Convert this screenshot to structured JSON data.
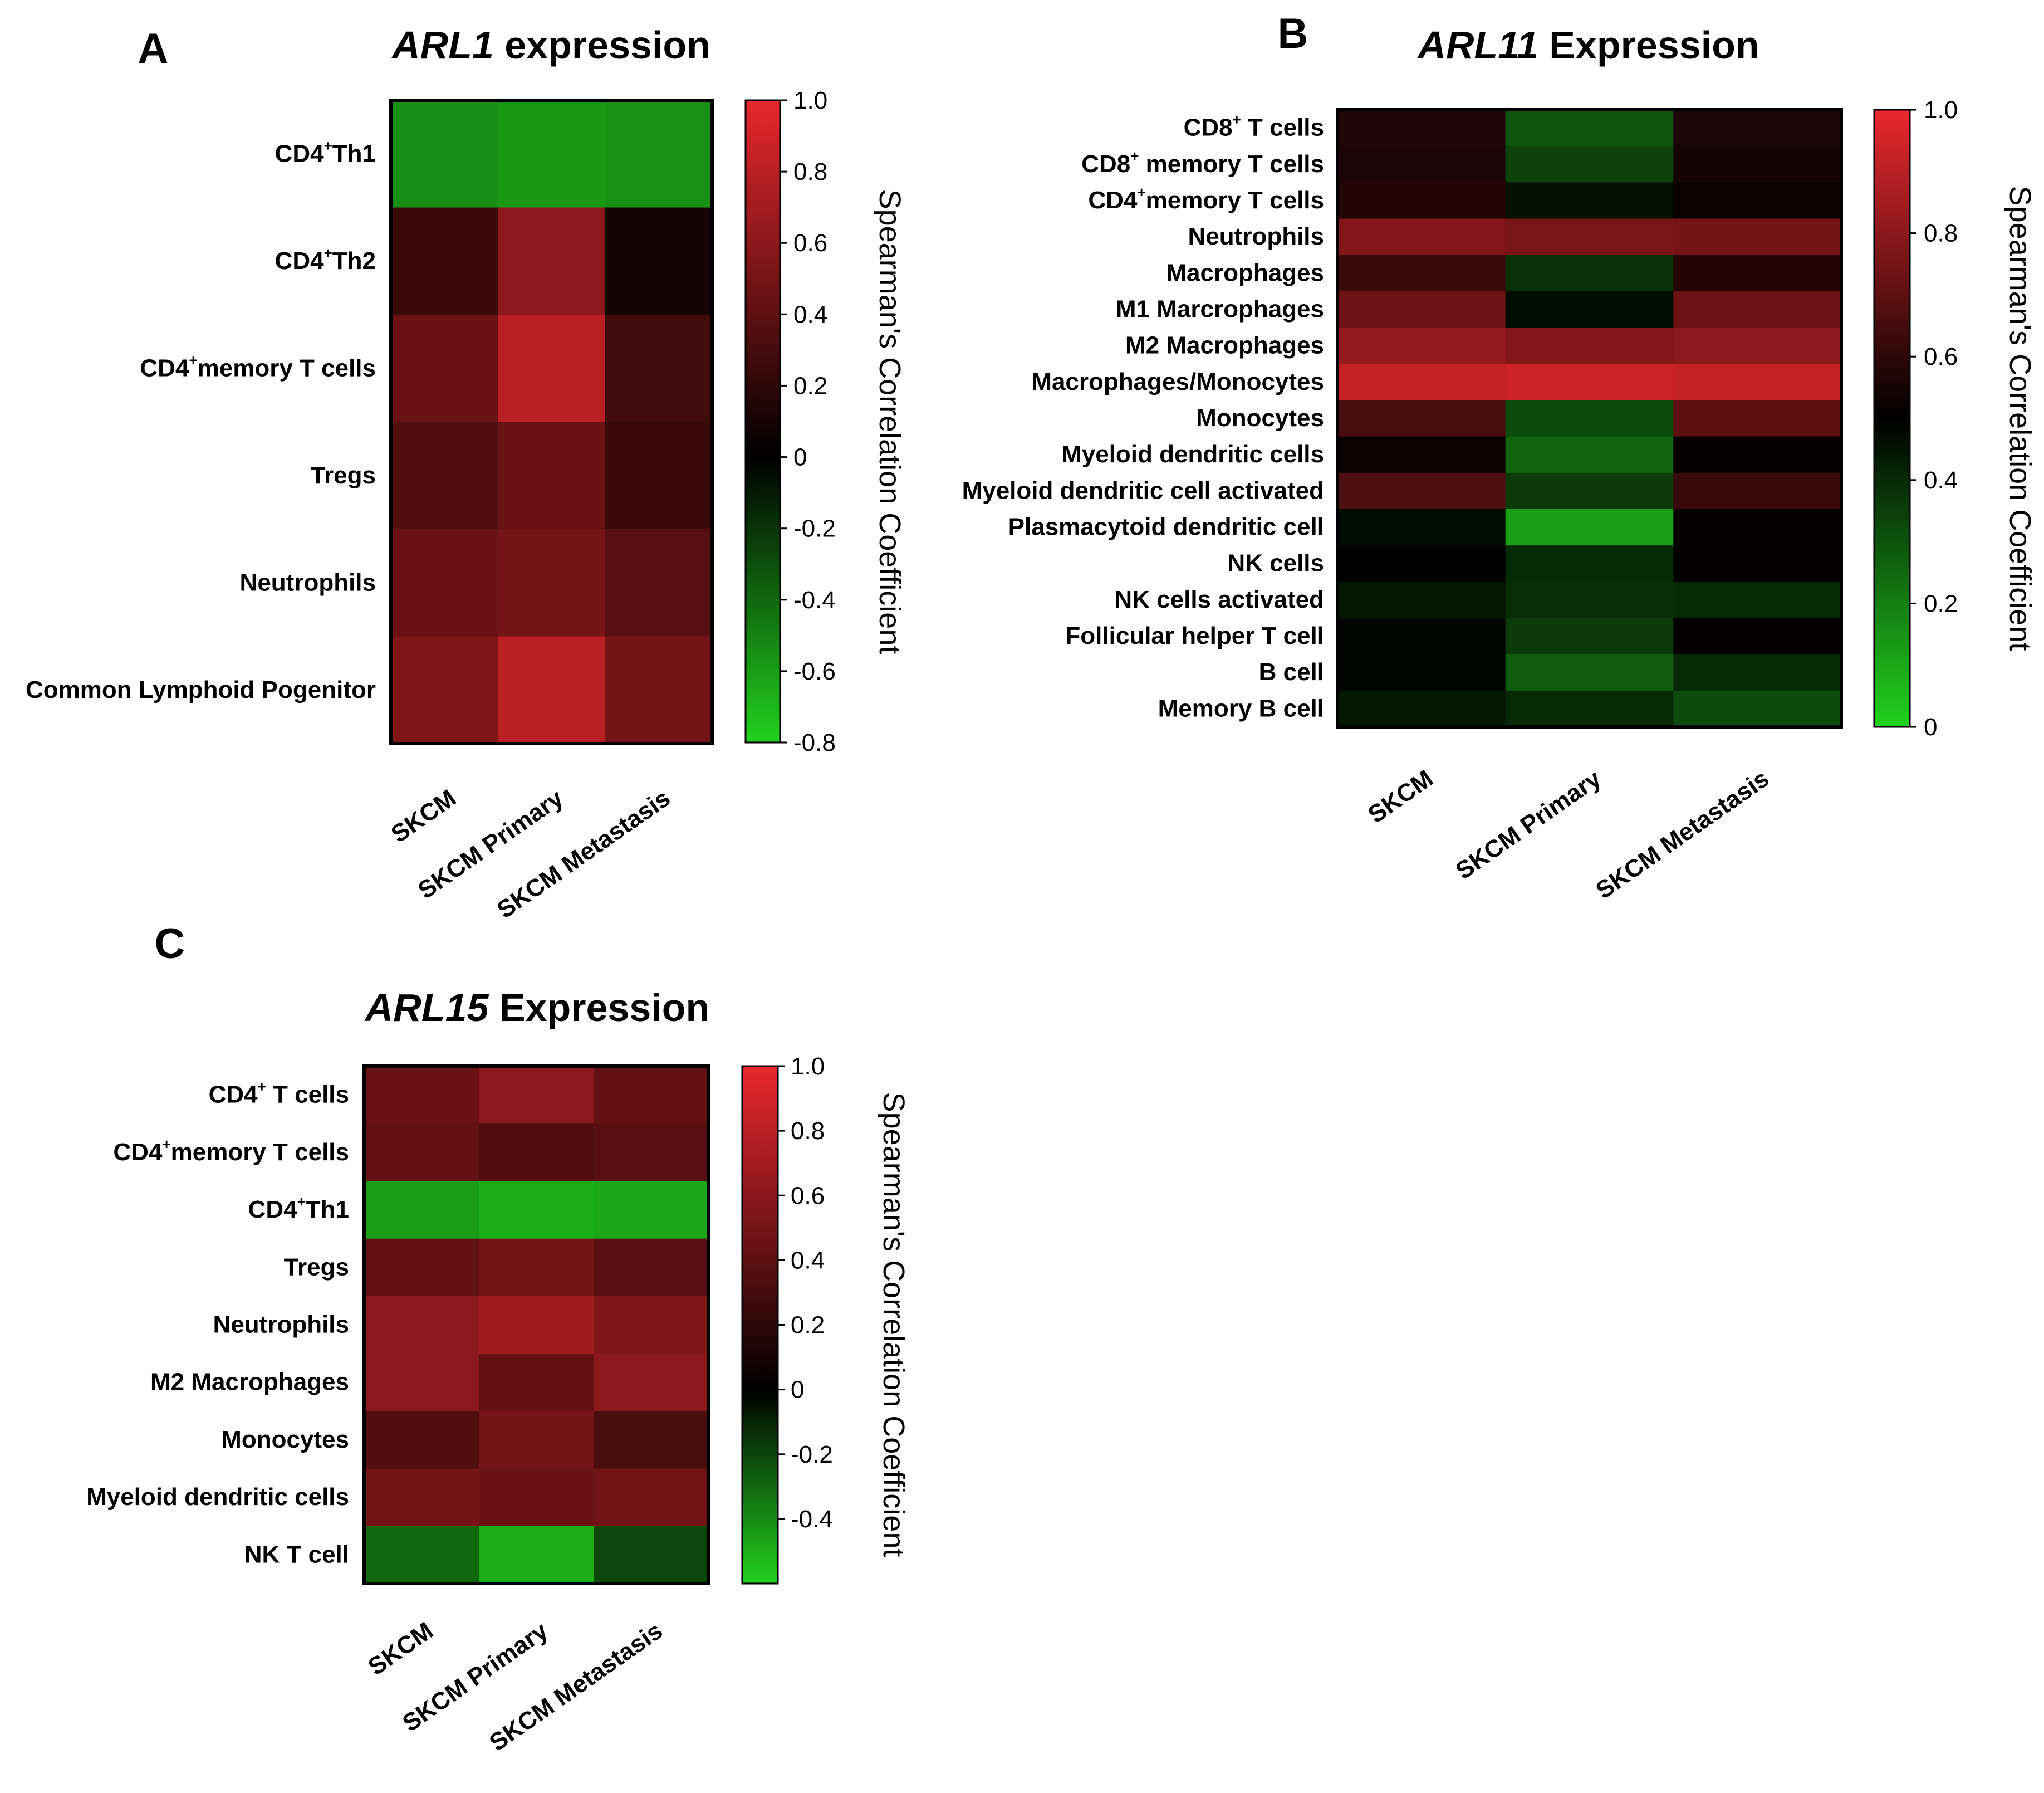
{
  "chart_data": [
    {
      "type": "heatmap",
      "panel": "A",
      "title_italic": "ARL1",
      "title_rest": " expression",
      "columns": [
        "SKCM",
        "SKCM Primary",
        "SKCM Metastasis"
      ],
      "rows": [
        {
          "pre": "CD4",
          "sup": "+",
          "post": "Th1",
          "values": [
            -0.55,
            -0.58,
            -0.56
          ]
        },
        {
          "pre": "CD4",
          "sup": "+",
          "post": "Th2",
          "values": [
            0.25,
            0.6,
            0.1
          ]
        },
        {
          "pre": "CD4",
          "sup": "+",
          "post": "memory T cells",
          "values": [
            0.45,
            0.8,
            0.28
          ]
        },
        {
          "pre": "Tregs",
          "sup": "",
          "post": "",
          "values": [
            0.35,
            0.45,
            0.25
          ]
        },
        {
          "pre": "Neutrophils",
          "sup": "",
          "post": "",
          "values": [
            0.45,
            0.5,
            0.38
          ]
        },
        {
          "pre": "Common Lymphoid Pogenitor",
          "sup": "",
          "post": "",
          "values": [
            0.55,
            0.8,
            0.5
          ]
        }
      ],
      "colorbar": {
        "min": -0.8,
        "max": 1.0,
        "mid": 0,
        "ticks": [
          "1.0",
          "0.8",
          "0.6",
          "0.4",
          "0.2",
          "0",
          "-0.2",
          "-0.4",
          "-0.6",
          "-0.8"
        ],
        "tick_values": [
          1.0,
          0.8,
          0.6,
          0.4,
          0.2,
          0,
          -0.2,
          -0.4,
          -0.6,
          -0.8
        ],
        "label": "Spearman's Correlation Coefficient"
      }
    },
    {
      "type": "heatmap",
      "panel": "B",
      "title_italic": "ARL11",
      "title_rest": " Expression",
      "columns": [
        "SKCM",
        "SKCM Primary",
        "SKCM Metastasis"
      ],
      "rows": [
        {
          "pre": "CD8",
          "sup": "+",
          "post": " T cells",
          "values": [
            0.57,
            0.3,
            0.56
          ]
        },
        {
          "pre": "CD8",
          "sup": "+",
          "post": " memory T cells",
          "values": [
            0.56,
            0.34,
            0.55
          ]
        },
        {
          "pre": "CD4",
          "sup": "+",
          "post": "memory T cells",
          "values": [
            0.58,
            0.46,
            0.52
          ]
        },
        {
          "pre": "Neutrophils",
          "sup": "",
          "post": "",
          "values": [
            0.78,
            0.76,
            0.75
          ]
        },
        {
          "pre": "Macrophages",
          "sup": "",
          "post": "",
          "values": [
            0.62,
            0.38,
            0.58
          ]
        },
        {
          "pre": "M1 Marcrophages",
          "sup": "",
          "post": "",
          "values": [
            0.73,
            0.47,
            0.73
          ]
        },
        {
          "pre": "M2 Macrophages",
          "sup": "",
          "post": "",
          "values": [
            0.82,
            0.78,
            0.8
          ]
        },
        {
          "pre": "Macrophages/Monocytes",
          "sup": "",
          "post": "",
          "values": [
            0.92,
            0.94,
            0.92
          ]
        },
        {
          "pre": "Monocytes",
          "sup": "",
          "post": "",
          "values": [
            0.66,
            0.32,
            0.7
          ]
        },
        {
          "pre": "Myeloid dendritic cells",
          "sup": "",
          "post": "",
          "values": [
            0.52,
            0.26,
            0.51
          ]
        },
        {
          "pre": "Myeloid dendritic cell activated",
          "sup": "",
          "post": "",
          "values": [
            0.67,
            0.36,
            0.62
          ]
        },
        {
          "pre": "Plasmacytoid dendritic cell",
          "sup": "",
          "post": "",
          "values": [
            0.47,
            0.12,
            0.51
          ]
        },
        {
          "pre": "NK cells",
          "sup": "",
          "post": "",
          "values": [
            0.5,
            0.4,
            0.51
          ]
        },
        {
          "pre": "NK cells activated",
          "sup": "",
          "post": "",
          "values": [
            0.44,
            0.39,
            0.4
          ]
        },
        {
          "pre": "Follicular helper T cell",
          "sup": "",
          "post": "",
          "values": [
            0.49,
            0.36,
            0.51
          ]
        },
        {
          "pre": "B cell",
          "sup": "",
          "post": "",
          "values": [
            0.49,
            0.28,
            0.4
          ]
        },
        {
          "pre": "Memory B cell ",
          "sup": "",
          "post": "",
          "values": [
            0.44,
            0.4,
            0.32
          ]
        }
      ],
      "colorbar": {
        "min": 0,
        "max": 1.0,
        "mid": 0.5,
        "ticks": [
          "1.0",
          "0.8",
          "0.6",
          "0.4",
          "0.2",
          "0"
        ],
        "tick_values": [
          1.0,
          0.8,
          0.6,
          0.4,
          0.2,
          0
        ],
        "label": "Spearman's Correlation Coefficient"
      }
    },
    {
      "type": "heatmap",
      "panel": "C",
      "title_italic": "ARL15",
      "title_rest": " Expression",
      "columns": [
        "SKCM",
        "SKCM Primary",
        "SKCM Metastasis"
      ],
      "rows": [
        {
          "pre": "CD4",
          "sup": "+",
          "post": " T cells",
          "values": [
            0.45,
            0.6,
            0.42
          ]
        },
        {
          "pre": "CD4",
          "sup": "+",
          "post": "memory T cells",
          "values": [
            0.42,
            0.35,
            0.38
          ]
        },
        {
          "pre": "CD4",
          "sup": "+",
          "post": "Th1",
          "values": [
            -0.45,
            -0.5,
            -0.48
          ]
        },
        {
          "pre": "Tregs",
          "sup": "",
          "post": "",
          "values": [
            0.42,
            0.5,
            0.38
          ]
        },
        {
          "pre": "Neutrophils",
          "sup": "",
          "post": "",
          "values": [
            0.6,
            0.68,
            0.55
          ]
        },
        {
          "pre": "M2 Macrophages",
          "sup": "",
          "post": "",
          "values": [
            0.6,
            0.42,
            0.6
          ]
        },
        {
          "pre": "Monocytes",
          "sup": "",
          "post": "",
          "values": [
            0.35,
            0.5,
            0.32
          ]
        },
        {
          "pre": "Myeloid dendritic cells",
          "sup": "",
          "post": "",
          "values": [
            0.5,
            0.45,
            0.48
          ]
        },
        {
          "pre": "NK T cell",
          "sup": "",
          "post": "",
          "values": [
            -0.3,
            -0.5,
            -0.2
          ]
        }
      ],
      "colorbar": {
        "min": -0.6,
        "max": 1.0,
        "mid": 0,
        "ticks": [
          "1.0",
          "0.8",
          "0.6",
          "0.4",
          "0.2",
          "0",
          "-0.2",
          "-0.4"
        ],
        "tick_values": [
          1.0,
          0.8,
          0.6,
          0.4,
          0.2,
          0,
          -0.2,
          -0.4
        ],
        "label": "Spearman's Correlation Coefficient"
      }
    }
  ]
}
